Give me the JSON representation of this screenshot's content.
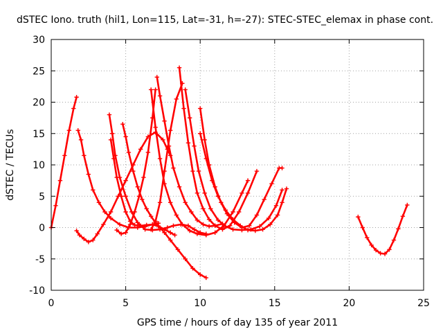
{
  "chart_data": {
    "type": "scatter",
    "title": "dSTEC Iono. truth (hil1, Lon=115, Lat=-31, h=-27): STEC-STEC_elemax in phase cont.",
    "xlabel": "GPS time / hours of day 135 of year 2011",
    "ylabel": "dSTEC  / TECUs",
    "xlim": [
      0,
      25
    ],
    "ylim": [
      -10,
      30
    ],
    "x_ticks": [
      "0",
      "5",
      "10",
      "15",
      "20",
      "25"
    ],
    "y_ticks": [
      "-10",
      "-5",
      "0",
      "5",
      "10",
      "15",
      "20",
      "25",
      "30"
    ],
    "grid": true,
    "marker": "plus",
    "color": "#ff0000",
    "series": [
      {
        "x": [
          0.0,
          0.3,
          0.6,
          0.9,
          1.2,
          1.5,
          1.7
        ],
        "y": [
          0.0,
          3.5,
          7.5,
          11.5,
          15.5,
          19.0,
          20.8
        ]
      },
      {
        "x": [
          1.8,
          2.0,
          2.2,
          2.5,
          2.8,
          3.2,
          3.6,
          4.0,
          4.6,
          5.2,
          5.8,
          6.3,
          6.8,
          7.2
        ],
        "y": [
          15.5,
          14.0,
          11.5,
          8.5,
          6.0,
          4.0,
          2.5,
          1.5,
          0.5,
          0.0,
          0.0,
          0.2,
          0.5,
          0.7
        ]
      },
      {
        "x": [
          1.7,
          1.9,
          2.2,
          2.5,
          2.8,
          3.1,
          3.5,
          4.0,
          4.5,
          5.0,
          5.5,
          6.0,
          6.5,
          7.0,
          7.5,
          7.8,
          8.0
        ],
        "y": [
          -0.5,
          -1.2,
          -1.8,
          -2.3,
          -2.0,
          -1.0,
          0.5,
          2.5,
          5.0,
          7.5,
          10.0,
          12.5,
          14.5,
          15.2,
          14.0,
          12.5,
          11.5
        ]
      },
      {
        "x": [
          3.9,
          4.1,
          4.3,
          4.6,
          5.0,
          5.4,
          5.8,
          6.3,
          6.8,
          7.3,
          7.8,
          8.2,
          8.7,
          9.2,
          9.6,
          10.0,
          10.4
        ],
        "y": [
          18.0,
          15.0,
          11.5,
          8.0,
          5.0,
          2.5,
          0.8,
          -0.3,
          -0.4,
          -0.3,
          0.0,
          0.3,
          0.5,
          0.3,
          -0.3,
          -0.8,
          -1.0
        ]
      },
      {
        "x": [
          4.0,
          4.2,
          4.4,
          4.7,
          5.0,
          5.3,
          5.6,
          6.0,
          6.4,
          6.8,
          7.2,
          7.6,
          8.0,
          8.3
        ],
        "y": [
          14.0,
          11.0,
          8.0,
          5.0,
          2.5,
          1.0,
          0.4,
          0.3,
          0.4,
          0.5,
          0.2,
          -0.3,
          -0.8,
          -1.2
        ]
      },
      {
        "x": [
          4.4,
          4.7,
          5.0,
          5.3,
          5.6,
          5.9,
          6.2,
          6.5,
          6.8,
          7.0
        ],
        "y": [
          -0.4,
          -1.0,
          -0.8,
          0.5,
          2.5,
          5.0,
          8.0,
          12.0,
          17.5,
          22.0
        ]
      },
      {
        "x": [
          4.8,
          5.0,
          5.2,
          5.5,
          5.8,
          6.1,
          6.4,
          6.7,
          7.0,
          7.3,
          7.6,
          8.0,
          8.5,
          9.0,
          9.5,
          10.0,
          10.4
        ],
        "y": [
          16.5,
          14.5,
          12.0,
          9.0,
          6.5,
          4.5,
          3.0,
          1.8,
          0.8,
          0.0,
          -0.8,
          -2.0,
          -3.5,
          -5.0,
          -6.5,
          -7.5,
          -8.0
        ]
      },
      {
        "x": [
          6.7,
          7.0,
          7.3,
          7.6,
          8.0,
          8.4,
          8.8,
          9.3,
          9.8,
          10.4,
          11.0,
          11.6,
          12.2,
          12.8,
          13.2
        ],
        "y": [
          22.0,
          16.0,
          11.0,
          7.0,
          4.0,
          2.0,
          0.5,
          -0.5,
          -1.0,
          -1.2,
          -0.8,
          0.3,
          2.5,
          5.5,
          7.5
        ]
      },
      {
        "x": [
          7.1,
          7.3,
          7.6,
          7.9,
          8.2,
          8.6,
          9.0,
          9.4,
          9.8,
          10.2,
          10.6,
          11.0,
          11.5
        ],
        "y": [
          24.0,
          21.0,
          17.0,
          13.0,
          9.5,
          6.5,
          4.0,
          2.5,
          1.2,
          0.5,
          0.2,
          0.3,
          0.6
        ]
      },
      {
        "x": [
          6.7,
          7.0,
          7.3,
          7.6,
          8.0,
          8.4,
          8.8
        ],
        "y": [
          -0.3,
          1.0,
          4.0,
          9.0,
          15.5,
          20.5,
          23.0
        ]
      },
      {
        "x": [
          8.6,
          8.9,
          9.2,
          9.5,
          9.8,
          10.2,
          10.6,
          11.0,
          11.5,
          12.0,
          12.6,
          13.2,
          13.8
        ],
        "y": [
          25.5,
          19.0,
          13.5,
          9.0,
          5.5,
          3.0,
          1.3,
          0.3,
          -0.3,
          0.3,
          2.5,
          5.5,
          9.0
        ]
      },
      {
        "x": [
          9.0,
          9.3,
          9.6,
          9.9,
          10.3,
          10.7,
          11.2,
          11.7,
          12.2,
          12.8,
          13.4,
          14.0,
          14.6,
          15.1,
          15.5
        ],
        "y": [
          22.0,
          17.5,
          13.0,
          9.0,
          5.5,
          3.0,
          1.2,
          0.2,
          -0.3,
          -0.4,
          -0.3,
          0.2,
          1.5,
          3.5,
          6.0
        ]
      },
      {
        "x": [
          10.0,
          10.3,
          10.6,
          11.0,
          11.4,
          11.8,
          12.3,
          12.8,
          13.3,
          13.8,
          14.3,
          14.8,
          15.3,
          15.5
        ],
        "y": [
          19.0,
          14.0,
          10.0,
          6.5,
          4.0,
          2.2,
          0.8,
          0.0,
          0.3,
          2.0,
          4.5,
          7.0,
          9.5,
          9.5
        ]
      },
      {
        "x": [
          10.0,
          10.4,
          10.8,
          11.2,
          11.7,
          12.2,
          12.7,
          13.2,
          13.7,
          14.2,
          14.7,
          15.2,
          15.5,
          15.8
        ],
        "y": [
          15.0,
          11.0,
          7.5,
          5.0,
          2.8,
          1.3,
          0.3,
          -0.4,
          -0.5,
          -0.3,
          0.5,
          2.0,
          4.0,
          6.2
        ]
      },
      {
        "x": [
          20.6,
          20.9,
          21.2,
          21.5,
          21.8,
          22.1,
          22.4,
          22.7,
          23.0,
          23.3,
          23.6,
          23.9
        ],
        "y": [
          1.7,
          0.0,
          -1.6,
          -2.8,
          -3.6,
          -4.1,
          -4.2,
          -3.5,
          -2.0,
          -0.2,
          1.8,
          3.6
        ]
      }
    ]
  }
}
